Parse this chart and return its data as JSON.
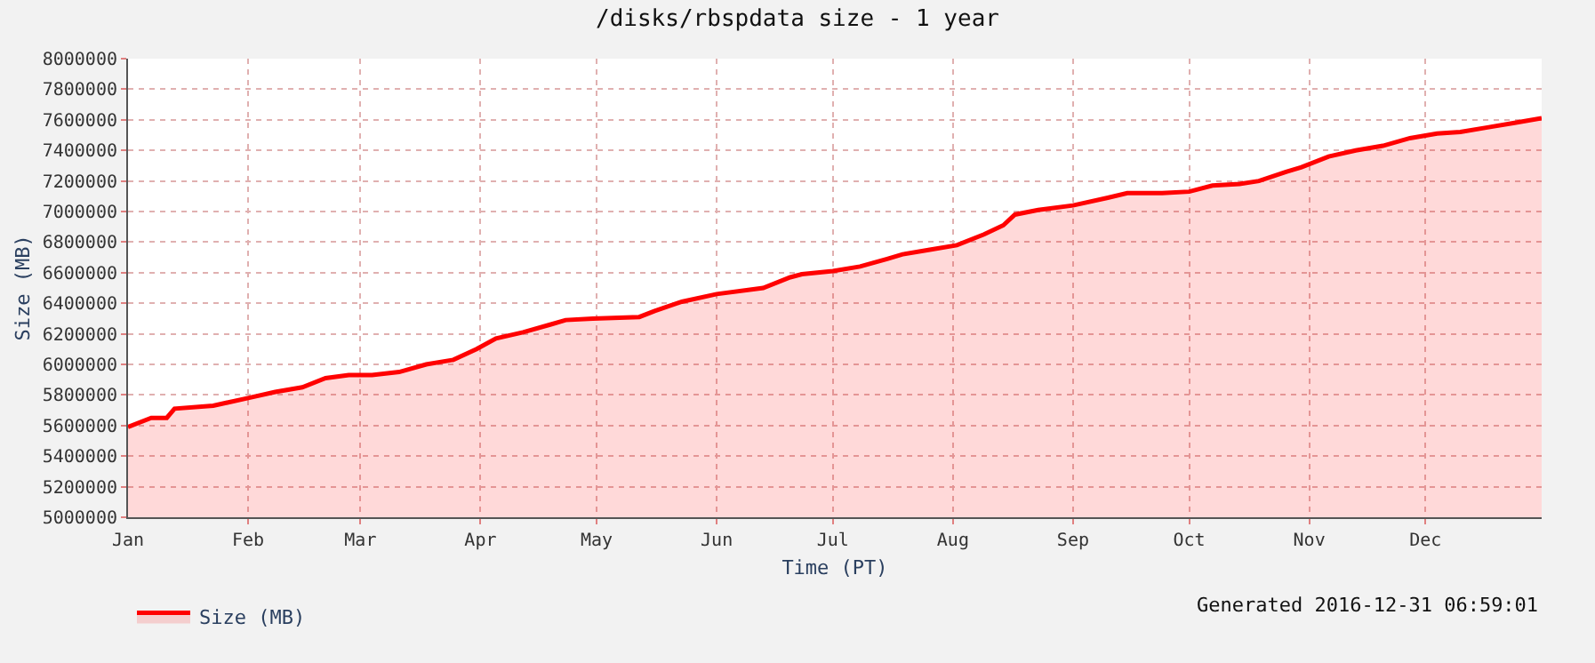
{
  "chart_data": {
    "type": "area",
    "title": "/disks/rbspdata size - 1 year",
    "xlabel": "Time (PT)",
    "ylabel": "Size (MB)",
    "annotations": [
      "Generated 2016-12-31 06:59:01"
    ],
    "x": [
      "2016-01-01",
      "2016-01-07",
      "2016-01-11",
      "2016-01-13",
      "2016-01-23",
      "2016-02-01",
      "2016-02-08",
      "2016-02-15",
      "2016-02-21",
      "2016-02-27",
      "2016-03-04",
      "2016-03-11",
      "2016-03-18",
      "2016-03-25",
      "2016-03-31",
      "2016-04-05",
      "2016-04-12",
      "2016-04-19",
      "2016-04-23",
      "2016-04-30",
      "2016-05-12",
      "2016-05-16",
      "2016-05-23",
      "2016-06-01",
      "2016-06-13",
      "2016-06-20",
      "2016-06-23",
      "2016-07-01",
      "2016-07-08",
      "2016-07-15",
      "2016-07-19",
      "2016-07-26",
      "2016-08-02",
      "2016-08-09",
      "2016-08-14",
      "2016-08-17",
      "2016-08-23",
      "2016-09-01",
      "2016-09-10",
      "2016-09-15",
      "2016-09-24",
      "2016-10-01",
      "2016-10-07",
      "2016-10-14",
      "2016-10-19",
      "2016-10-26",
      "2016-10-30",
      "2016-11-06",
      "2016-11-13",
      "2016-11-20",
      "2016-11-27",
      "2016-12-04",
      "2016-12-10",
      "2016-12-17",
      "2016-12-24",
      "2016-12-31"
    ],
    "series": [
      {
        "name": "Size (MB)",
        "color": "#ff0000",
        "values": [
          5590000,
          5650000,
          5650000,
          5710000,
          5730000,
          5780000,
          5820000,
          5850000,
          5910000,
          5930000,
          5930000,
          5950000,
          6000000,
          6030000,
          6100000,
          6170000,
          6210000,
          6260000,
          6290000,
          6300000,
          6310000,
          6350000,
          6410000,
          6460000,
          6500000,
          6570000,
          6590000,
          6610000,
          6640000,
          6690000,
          6720000,
          6750000,
          6780000,
          6850000,
          6910000,
          6980000,
          7010000,
          7040000,
          7090000,
          7120000,
          7120000,
          7130000,
          7170000,
          7180000,
          7200000,
          7260000,
          7290000,
          7360000,
          7400000,
          7430000,
          7480000,
          7510000,
          7520000,
          7550000,
          7580000,
          7610000
        ]
      }
    ],
    "xlim": [
      "2016-01-01",
      "2016-12-31"
    ],
    "xticks": [
      {
        "value": "2016-01-01",
        "label": "Jan"
      },
      {
        "value": "2016-02-01",
        "label": "Feb"
      },
      {
        "value": "2016-03-01",
        "label": "Mar"
      },
      {
        "value": "2016-04-01",
        "label": "Apr"
      },
      {
        "value": "2016-05-01",
        "label": "May"
      },
      {
        "value": "2016-06-01",
        "label": "Jun"
      },
      {
        "value": "2016-07-01",
        "label": "Jul"
      },
      {
        "value": "2016-08-01",
        "label": "Aug"
      },
      {
        "value": "2016-09-01",
        "label": "Sep"
      },
      {
        "value": "2016-10-01",
        "label": "Oct"
      },
      {
        "value": "2016-11-01",
        "label": "Nov"
      },
      {
        "value": "2016-12-01",
        "label": "Dec"
      }
    ],
    "ylim": [
      5000000,
      8000000
    ],
    "yticks": [
      5000000,
      5200000,
      5400000,
      5600000,
      5800000,
      6000000,
      6200000,
      6400000,
      6600000,
      6800000,
      7000000,
      7200000,
      7400000,
      7600000,
      7800000,
      8000000
    ],
    "grid": true,
    "legend": "bottom left"
  }
}
